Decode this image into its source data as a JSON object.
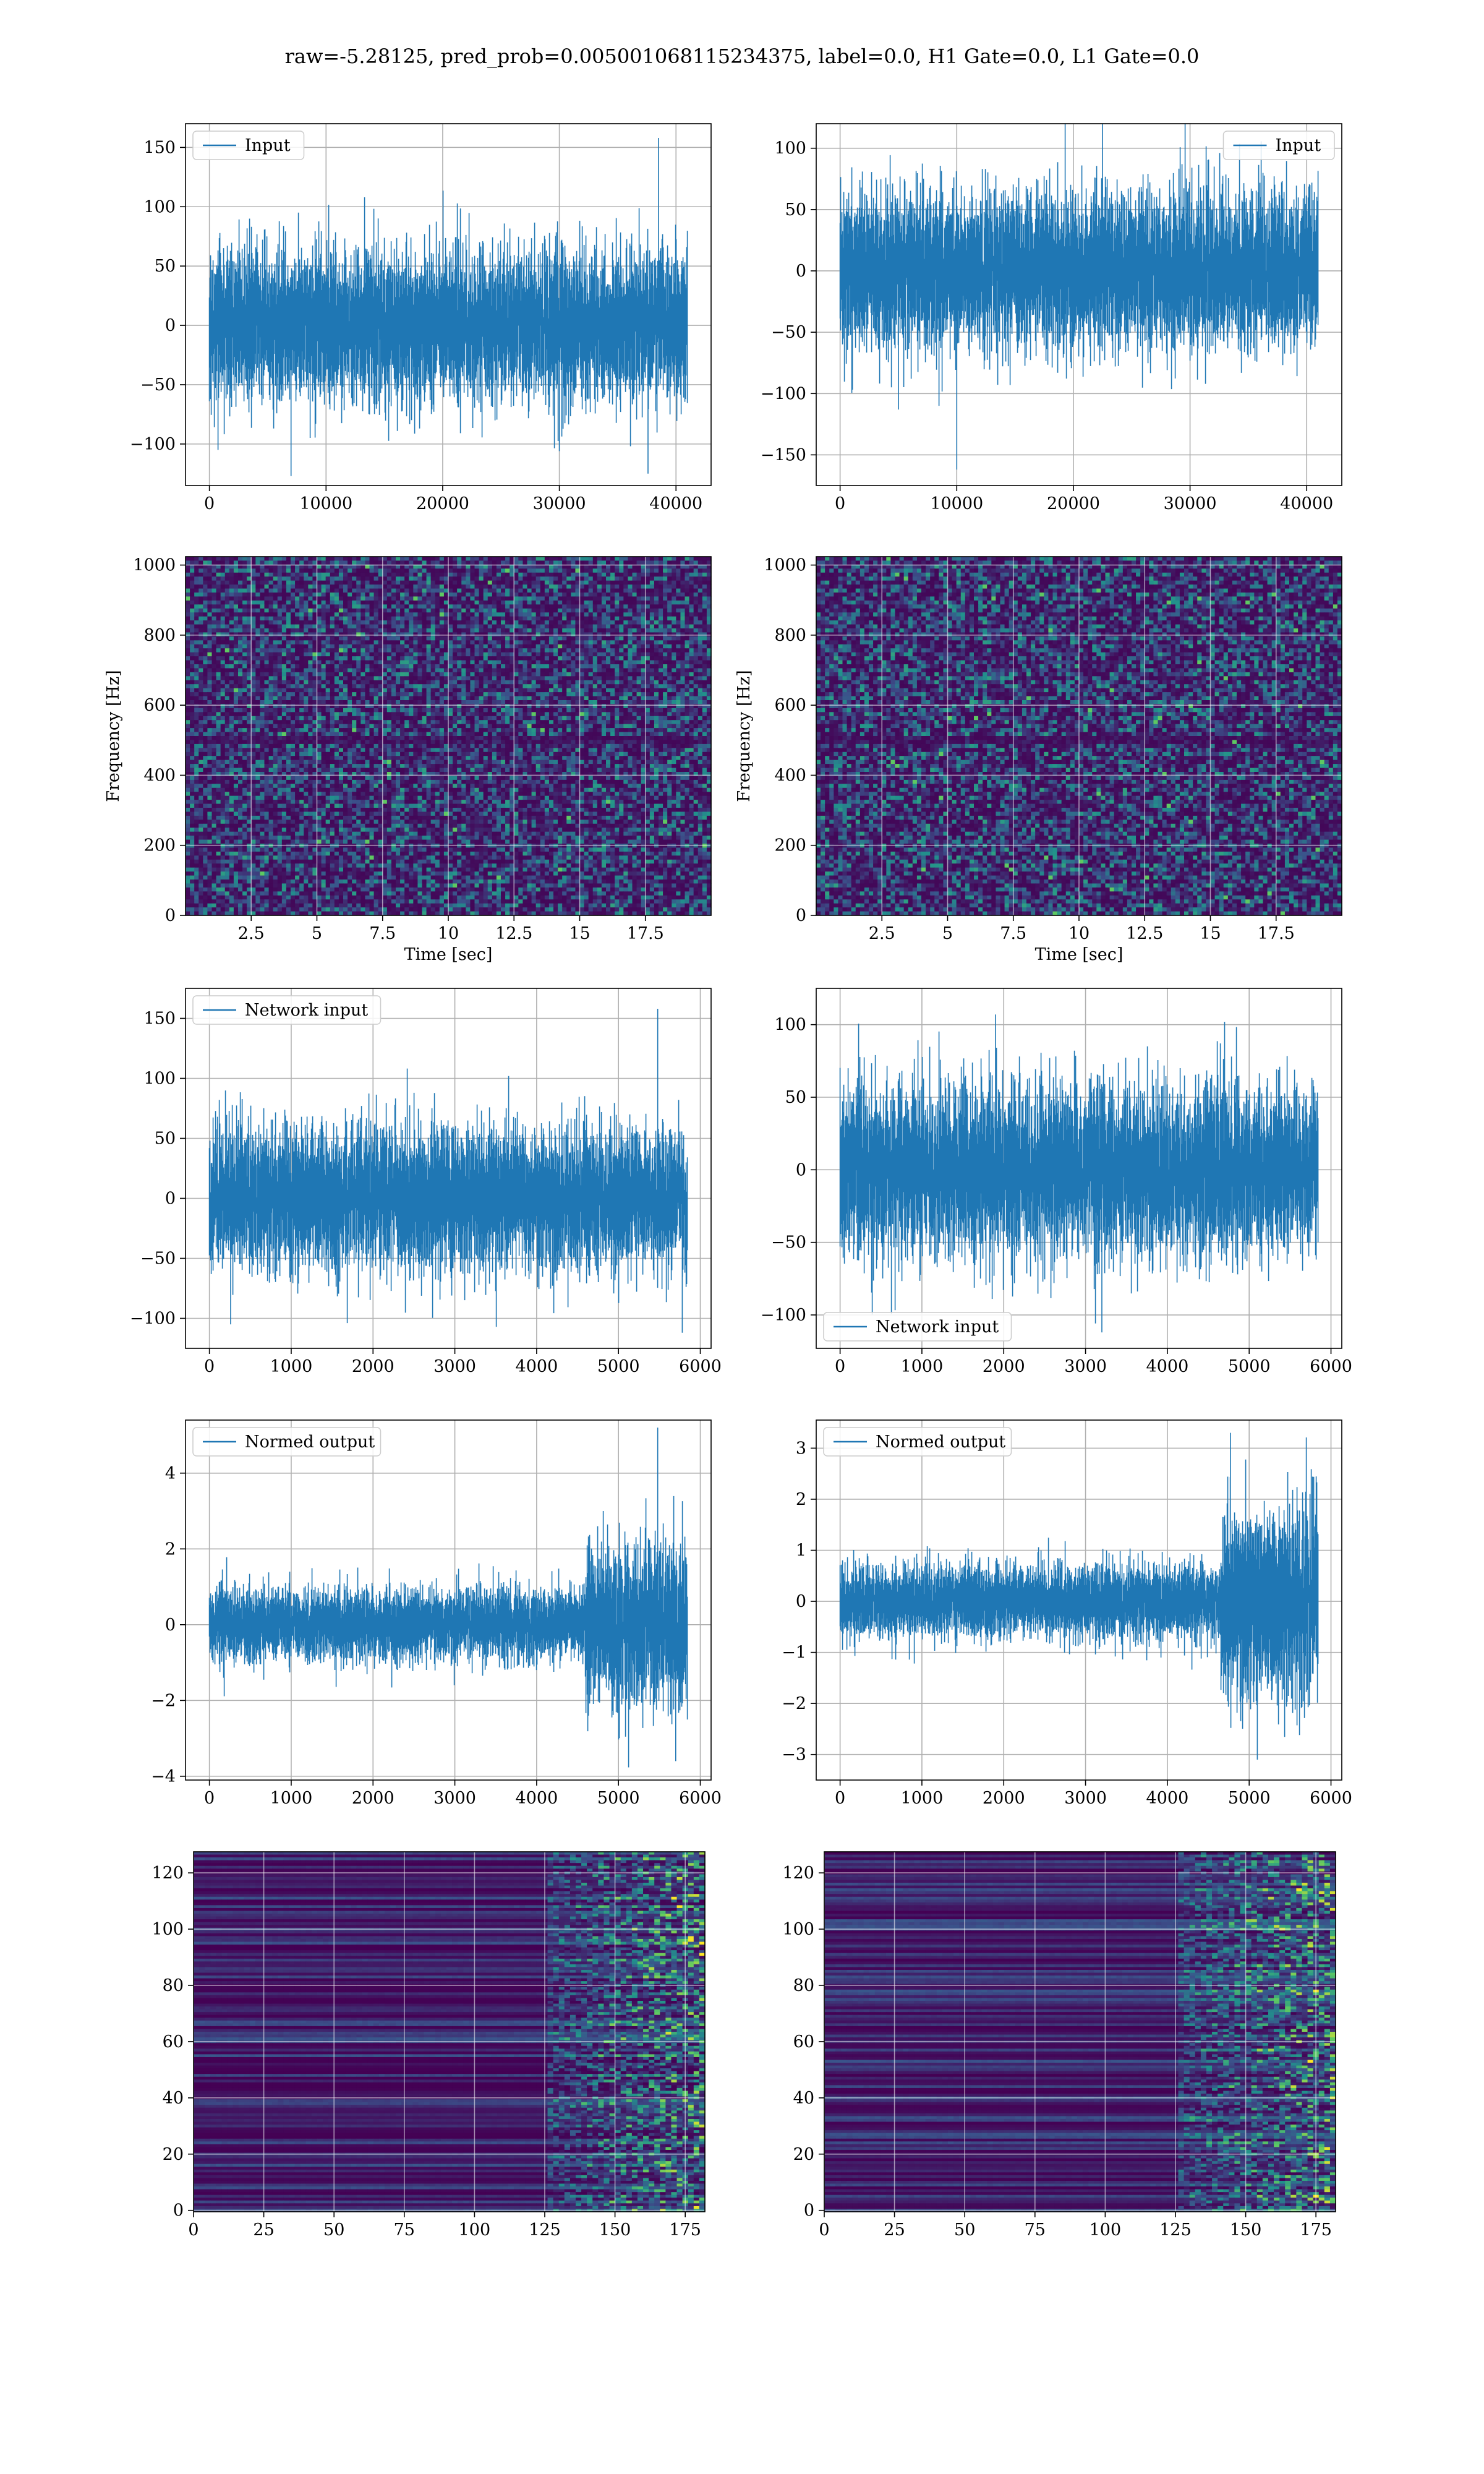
{
  "figure": {
    "suptitle": "raw=-5.28125, pred_prob=0.005001068115234375, label=0.0, H1 Gate=0.0, L1 Gate=0.0"
  },
  "colors": {
    "line": "#1f77b4",
    "grid": "#b0b0b0",
    "viridis_low": "#440154",
    "viridis_high": "#fde725"
  },
  "chart_data": [
    {
      "id": "input-left",
      "type": "line",
      "legend": "Input",
      "legend_loc": "upper left",
      "xlim": [
        -2048,
        43008
      ],
      "ylim": [
        -135,
        170
      ],
      "xticks": [
        0,
        10000,
        20000,
        30000,
        40000
      ],
      "yticks": [
        -100,
        -50,
        0,
        50,
        100,
        150
      ],
      "n_points": 40960,
      "amplitude": 30,
      "grid": true,
      "series": [
        {
          "envelope_peaks": [
            [
              38500,
              158
            ],
            [
              7000,
              -127
            ],
            [
              37600,
              -125
            ]
          ]
        }
      ]
    },
    {
      "id": "input-right",
      "type": "line",
      "legend": "Input",
      "legend_loc": "upper right",
      "xlim": [
        -2048,
        43008
      ],
      "ylim": [
        -175,
        120
      ],
      "xticks": [
        0,
        10000,
        20000,
        30000,
        40000
      ],
      "yticks": [
        -150,
        -100,
        -50,
        0,
        50,
        100
      ],
      "n_points": 40960,
      "amplitude": 30,
      "grid": true,
      "series": [
        {
          "envelope_peaks": [
            [
              10000,
              -162
            ],
            [
              22500,
              128
            ],
            [
              5000,
              -113
            ]
          ]
        }
      ]
    },
    {
      "id": "spectrogram-left",
      "type": "heatmap",
      "xlabel": "Time [sec]",
      "ylabel": "Frequency [Hz]",
      "xlim": [
        0,
        20
      ],
      "ylim": [
        0,
        1024
      ],
      "xticks": [
        2.5,
        5.0,
        7.5,
        10.0,
        12.5,
        15.0,
        17.5
      ],
      "yticks": [
        0,
        200,
        400,
        600,
        800,
        1000
      ],
      "colormap": "viridis",
      "grid": true
    },
    {
      "id": "spectrogram-right",
      "type": "heatmap",
      "xlabel": "Time [sec]",
      "ylabel": "Frequency [Hz]",
      "xlim": [
        0,
        20
      ],
      "ylim": [
        0,
        1024
      ],
      "xticks": [
        2.5,
        5.0,
        7.5,
        10.0,
        12.5,
        15.0,
        17.5
      ],
      "yticks": [
        0,
        200,
        400,
        600,
        800,
        1000
      ],
      "colormap": "viridis",
      "grid": true
    },
    {
      "id": "network-input-left",
      "type": "line",
      "legend": "Network input",
      "legend_loc": "upper left",
      "xlim": [
        -292,
        6132
      ],
      "ylim": [
        -125,
        175
      ],
      "xticks": [
        0,
        1000,
        2000,
        3000,
        4000,
        5000,
        6000
      ],
      "yticks": [
        -100,
        -50,
        0,
        50,
        100,
        150
      ],
      "n_points": 5840,
      "amplitude": 28,
      "grid": true,
      "series": [
        {
          "envelope_peaks": [
            [
              5480,
              158
            ],
            [
              5780,
              -112
            ],
            [
              260,
              -105
            ]
          ]
        }
      ]
    },
    {
      "id": "network-input-right",
      "type": "line",
      "legend": "Network input",
      "legend_loc": "lower left",
      "xlim": [
        -292,
        6132
      ],
      "ylim": [
        -123,
        125
      ],
      "xticks": [
        0,
        1000,
        2000,
        3000,
        4000,
        5000,
        6000
      ],
      "yticks": [
        -100,
        -50,
        0,
        50,
        100
      ],
      "n_points": 5840,
      "amplitude": 28,
      "grid": true,
      "series": [
        {
          "envelope_peaks": [
            [
              1900,
              107
            ],
            [
              3200,
              -112
            ],
            [
              4700,
              102
            ]
          ]
        }
      ]
    },
    {
      "id": "normed-output-left",
      "type": "line",
      "legend": "Normed output",
      "legend_loc": "upper left",
      "xlim": [
        -292,
        6132
      ],
      "ylim": [
        -4.1,
        5.4
      ],
      "xticks": [
        0,
        1000,
        2000,
        3000,
        4000,
        5000,
        6000
      ],
      "yticks": [
        -4,
        -2,
        0,
        2,
        4
      ],
      "n_points": 5840,
      "amplitude": 0.45,
      "grid": true,
      "series": [
        {
          "burst_start": 4600,
          "burst_amplitude": 1.0,
          "envelope_peaks": [
            [
              5480,
              5.2
            ],
            [
              5700,
              -3.6
            ]
          ]
        }
      ]
    },
    {
      "id": "normed-output-right",
      "type": "line",
      "legend": "Normed output",
      "legend_loc": "upper left",
      "xlim": [
        -292,
        6132
      ],
      "ylim": [
        -3.5,
        3.55
      ],
      "xticks": [
        0,
        1000,
        2000,
        3000,
        4000,
        5000,
        6000
      ],
      "yticks": [
        -3,
        -2,
        -1,
        0,
        1,
        2,
        3
      ],
      "n_points": 5840,
      "amplitude": 0.35,
      "grid": true,
      "series": [
        {
          "burst_start": 4650,
          "burst_amplitude": 0.9,
          "envelope_peaks": [
            [
              4770,
              3.3
            ],
            [
              5100,
              -3.1
            ]
          ]
        }
      ]
    },
    {
      "id": "feature-map-left",
      "type": "heatmap",
      "xlim": [
        0,
        182
      ],
      "ylim": [
        127.5,
        -0.5
      ],
      "xticks": [
        0,
        25,
        50,
        75,
        100,
        125,
        150,
        175
      ],
      "yticks": [
        0,
        20,
        40,
        60,
        80,
        100,
        120
      ],
      "colormap": "viridis",
      "grid": true,
      "active_from_column": 125
    },
    {
      "id": "feature-map-right",
      "type": "heatmap",
      "xlim": [
        0,
        182
      ],
      "ylim": [
        127.5,
        -0.5
      ],
      "xticks": [
        0,
        25,
        50,
        75,
        100,
        125,
        150,
        175
      ],
      "yticks": [
        0,
        20,
        40,
        60,
        80,
        100,
        120
      ],
      "colormap": "viridis",
      "grid": true,
      "active_from_column": 125
    }
  ]
}
